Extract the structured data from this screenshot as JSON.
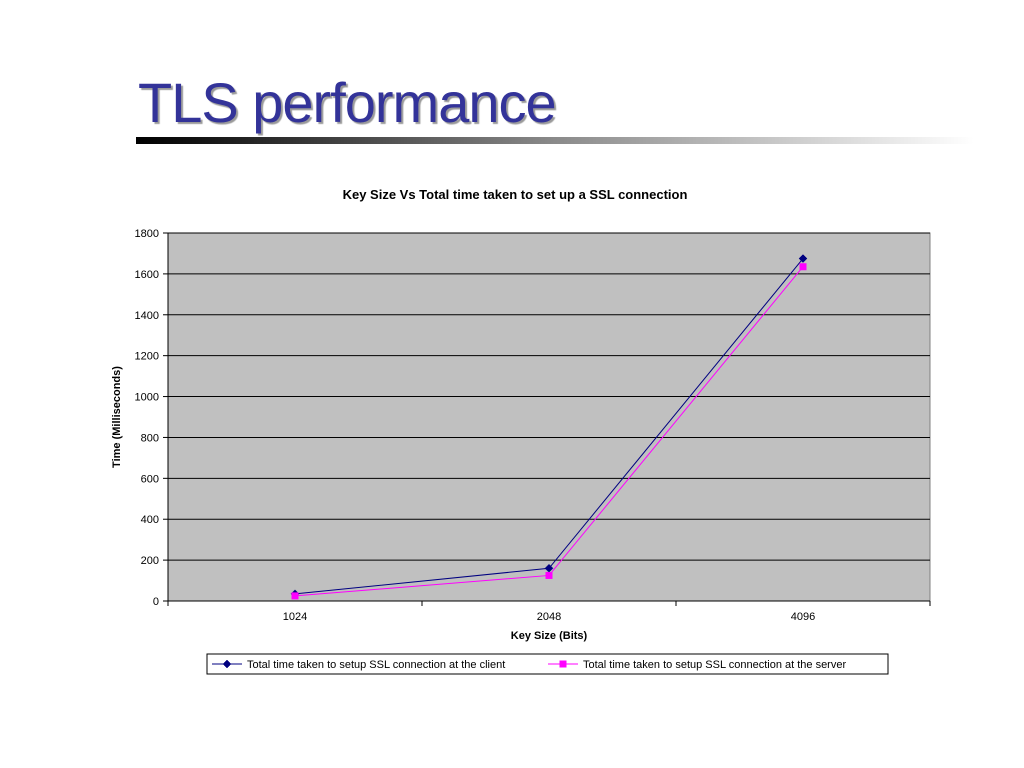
{
  "slide": {
    "title": "TLS performance"
  },
  "colors": {
    "title": "#333399",
    "plot_background": "#c0c0c0",
    "client_series": "#000080",
    "server_series": "#ff00ff"
  },
  "chart_data": {
    "type": "line",
    "title": "Key Size Vs Total time taken to set up a SSL connection",
    "xlabel": "Key Size (Bits)",
    "ylabel": "Time (Milliseconds)",
    "categories": [
      "1024",
      "2048",
      "4096"
    ],
    "ylim": [
      0,
      1800
    ],
    "yticks": [
      "0",
      "200",
      "400",
      "600",
      "800",
      "1000",
      "1200",
      "1400",
      "1600",
      "1800"
    ],
    "grid": true,
    "legend_position": "bottom",
    "series": [
      {
        "name": "Total time taken to setup SSL connection at the client",
        "values": [
          35,
          160,
          1675
        ],
        "color": "#000080",
        "marker": "diamond"
      },
      {
        "name": "Total time taken to setup SSL connection at the server",
        "values": [
          25,
          125,
          1635
        ],
        "color": "#ff00ff",
        "marker": "square"
      }
    ]
  }
}
